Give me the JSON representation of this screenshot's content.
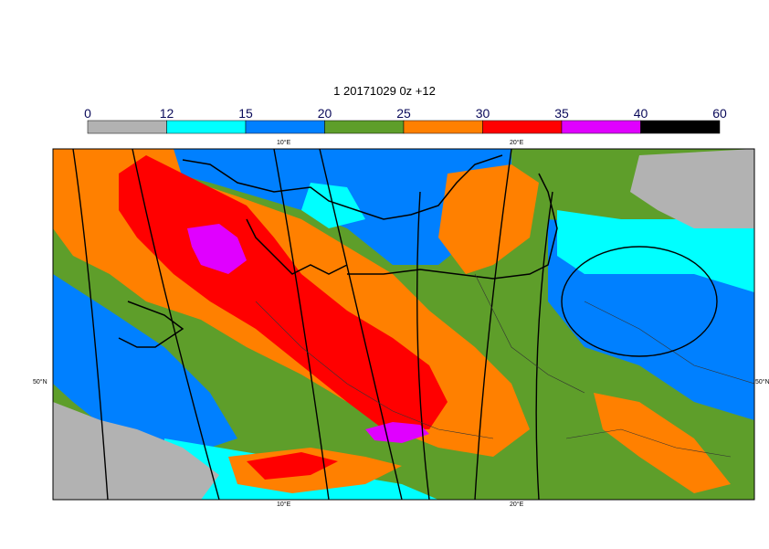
{
  "title": "1 20171029 0z +12",
  "legend": {
    "ticks": [
      "0",
      "12",
      "15",
      "20",
      "25",
      "30",
      "35",
      "40",
      "60"
    ],
    "colors": [
      "#b2b2b2",
      "#00ffff",
      "#0080ff",
      "#5e9e2a",
      "#ff8000",
      "#ff0000",
      "#e000ff",
      "#000000"
    ]
  },
  "map": {
    "lon_labels_top": [
      "10°E",
      "20°E"
    ],
    "lon_labels_bottom": [
      "10°E",
      "20°E"
    ],
    "lat_label_left": "50°N",
    "lat_label_right": "50°N",
    "background_color": "#5e9e2a"
  }
}
